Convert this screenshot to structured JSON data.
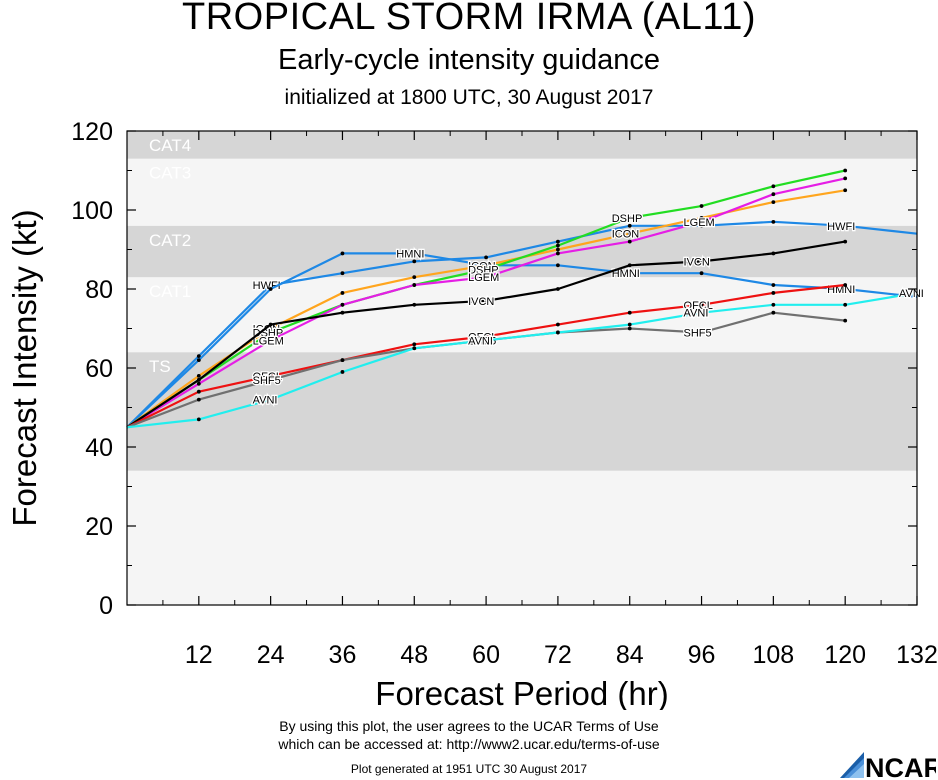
{
  "header": {
    "title": "TROPICAL STORM IRMA (AL11)",
    "subtitle": "Early-cycle intensity guidance",
    "init_line": "initialized at 1800 UTC, 30 August 2017"
  },
  "footer": {
    "terms_line1": "By using this plot, the user agrees to the UCAR Terms of Use",
    "terms_line2": "which can be accessed at: http://www2.ucar.edu/terms-of-use",
    "generated": "Plot generated at 1951 UTC   30 August 2017",
    "logo_text": "NCAR"
  },
  "chart_data": {
    "type": "line",
    "title": "TROPICAL STORM IRMA (AL11)",
    "xlabel": "Forecast Period (hr)",
    "ylabel": "Forecast Intensity (kt)",
    "xlim": [
      0,
      132
    ],
    "ylim": [
      0,
      120
    ],
    "xticks": [
      12,
      24,
      36,
      48,
      60,
      72,
      84,
      96,
      108,
      120,
      132
    ],
    "yticks": [
      0,
      20,
      40,
      60,
      80,
      100,
      120
    ],
    "bands": [
      {
        "label": "TS",
        "from": 34,
        "to": 64,
        "color": "#d6d6d6"
      },
      {
        "label": "CAT1",
        "from": 64,
        "to": 83,
        "color": "#f5f5f5"
      },
      {
        "label": "CAT2",
        "from": 83,
        "to": 96,
        "color": "#d6d6d6"
      },
      {
        "label": "CAT3",
        "from": 96,
        "to": 113,
        "color": "#f5f5f5"
      },
      {
        "label": "CAT4",
        "from": 113,
        "to": 120,
        "color": "#d6d6d6"
      }
    ],
    "series": [
      {
        "name": "HWFI",
        "color": "#1e88e5",
        "x": [
          0,
          12,
          24,
          36,
          48,
          60,
          72,
          84,
          96,
          108,
          120,
          132
        ],
        "y": [
          45,
          63,
          81,
          84,
          87,
          88,
          92,
          96,
          96,
          97,
          96,
          94
        ],
        "labels": [
          [
            24,
            "HWFI"
          ],
          [
            120,
            "HWFI"
          ]
        ]
      },
      {
        "name": "HMNI",
        "color": "#1e88e5",
        "x": [
          0,
          12,
          24,
          36,
          48,
          60,
          72,
          84,
          96,
          108,
          120,
          132
        ],
        "y": [
          45,
          62,
          80,
          89,
          89,
          86,
          86,
          84,
          84,
          81,
          80,
          78
        ],
        "labels": [
          [
            48,
            "HMNI"
          ],
          [
            84,
            "HMNI"
          ],
          [
            120,
            "HMNI"
          ]
        ]
      },
      {
        "name": "ICON",
        "color": "#ffa51e",
        "x": [
          0,
          12,
          24,
          36,
          48,
          60,
          72,
          84,
          96,
          108,
          120
        ],
        "y": [
          45,
          58,
          70,
          79,
          83,
          86,
          90,
          94,
          98,
          102,
          105
        ],
        "labels": [
          [
            24,
            "ICON"
          ],
          [
            60,
            "ICON"
          ],
          [
            84,
            "ICON"
          ]
        ]
      },
      {
        "name": "DSHP",
        "color": "#22dd22",
        "x": [
          0,
          12,
          24,
          36,
          48,
          60,
          72,
          84,
          96,
          108,
          120
        ],
        "y": [
          45,
          57,
          69,
          76,
          81,
          85,
          91,
          98,
          101,
          106,
          110
        ],
        "labels": [
          [
            24,
            "DSHP"
          ],
          [
            60,
            "DSHP"
          ],
          [
            84,
            "DSHP"
          ]
        ]
      },
      {
        "name": "LGEM",
        "color": "#e51ee5",
        "x": [
          0,
          12,
          24,
          36,
          48,
          60,
          72,
          84,
          96,
          108,
          120
        ],
        "y": [
          45,
          56,
          67,
          76,
          81,
          83,
          89,
          92,
          97,
          104,
          108
        ],
        "labels": [
          [
            24,
            "LGEM"
          ],
          [
            60,
            "LGEM"
          ],
          [
            96,
            "LGEM"
          ]
        ]
      },
      {
        "name": "IVCN",
        "color": "#000000",
        "x": [
          0,
          12,
          24,
          36,
          48,
          60,
          72,
          84,
          96,
          108,
          120
        ],
        "y": [
          45,
          57,
          71,
          74,
          76,
          77,
          80,
          86,
          87,
          89,
          92
        ],
        "labels": [
          [
            60,
            "IVCN"
          ],
          [
            96,
            "IVCN"
          ]
        ]
      },
      {
        "name": "OFCL",
        "color": "#ee1111",
        "x": [
          0,
          12,
          24,
          36,
          48,
          60,
          72,
          84,
          96,
          108,
          120
        ],
        "y": [
          45,
          54,
          58,
          62,
          66,
          68,
          71,
          74,
          76,
          79,
          81
        ],
        "labels": [
          [
            24,
            "OFCL"
          ],
          [
            60,
            "OFCL"
          ],
          [
            96,
            "OFCL"
          ]
        ]
      },
      {
        "name": "SHF5",
        "color": "#707070",
        "x": [
          0,
          12,
          24,
          36,
          48,
          60,
          72,
          84,
          96,
          108,
          120
        ],
        "y": [
          45,
          52,
          57,
          62,
          65,
          67,
          69,
          70,
          69,
          74,
          72
        ],
        "labels": [
          [
            24,
            "SHF5"
          ],
          [
            60,
            "SHF5"
          ],
          [
            96,
            "SHF5"
          ]
        ]
      },
      {
        "name": "AVNI",
        "color": "#22eeee",
        "x": [
          0,
          12,
          24,
          36,
          48,
          60,
          72,
          84,
          96,
          108,
          120,
          132
        ],
        "y": [
          45,
          47,
          52,
          59,
          65,
          67,
          69,
          71,
          74,
          76,
          76,
          79
        ],
        "labels": [
          [
            24,
            "AVNI"
          ],
          [
            60,
            "AVNI"
          ],
          [
            96,
            "AVNI"
          ],
          [
            132,
            "AVNI"
          ]
        ]
      }
    ]
  }
}
